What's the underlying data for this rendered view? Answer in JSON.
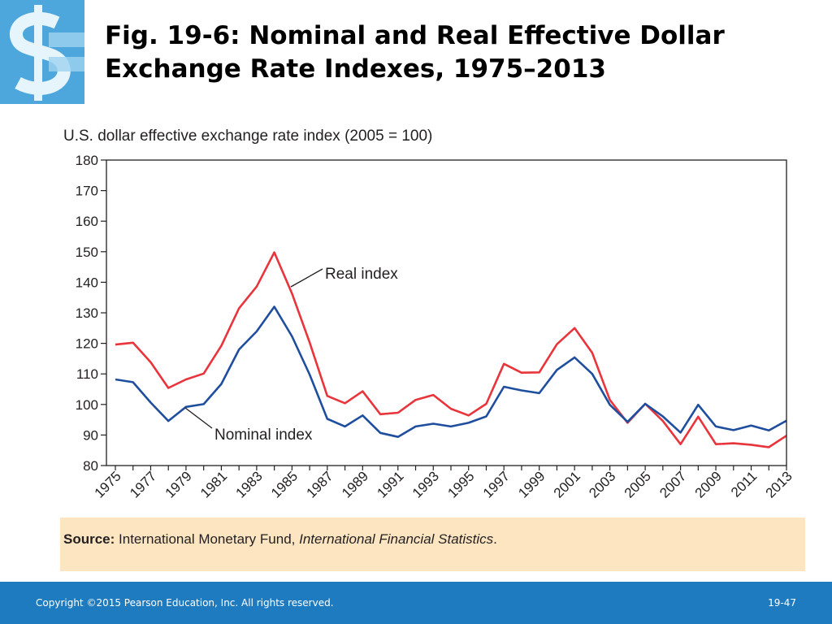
{
  "slide": {
    "title_line1": "Fig. 19-6: Nominal and Real Effective Dollar",
    "title_line2": "Exchange Rate Indexes, 1975–2013"
  },
  "logo": {
    "icon": "dollar-sign-logo-icon",
    "color": "#3a9bd5"
  },
  "chart_data": {
    "type": "line",
    "ylabel": "U.S. dollar effective exchange rate index (2005 = 100)",
    "xlabel": "",
    "ylim": [
      80,
      180
    ],
    "yticks": [
      80,
      90,
      100,
      110,
      120,
      130,
      140,
      150,
      160,
      170,
      180
    ],
    "xlim": [
      1975,
      2013
    ],
    "xtick_labels": [
      "1975",
      "1977",
      "1979",
      "1981",
      "1983",
      "1985",
      "1987",
      "1989",
      "1991",
      "1993",
      "1995",
      "1997",
      "1999",
      "2001",
      "2003",
      "2005",
      "2007",
      "2009",
      "2011",
      "2013"
    ],
    "grid": false,
    "x": [
      1975,
      1976,
      1977,
      1978,
      1979,
      1980,
      1981,
      1982,
      1983,
      1984,
      1985,
      1986,
      1987,
      1988,
      1989,
      1990,
      1991,
      1992,
      1993,
      1994,
      1995,
      1996,
      1997,
      1998,
      1999,
      2000,
      2001,
      2002,
      2003,
      2004,
      2005,
      2006,
      2007,
      2008,
      2009,
      2010,
      2011,
      2012,
      2013
    ],
    "series": [
      {
        "name": "Real index",
        "color": "#e8343b",
        "values": [
          119.6,
          120.2,
          113.8,
          105.4,
          108.2,
          110.1,
          119.2,
          131.5,
          138.6,
          149.8,
          136.3,
          120.3,
          102.8,
          100.4,
          104.3,
          96.8,
          97.3,
          101.5,
          103.1,
          98.6,
          96.4,
          100.2,
          113.3,
          110.4,
          110.5,
          119.7,
          125.0,
          116.9,
          101.5,
          94.0,
          100.2,
          94.6,
          87.0,
          96.0,
          87.0,
          87.3,
          86.8,
          86.0,
          89.8
        ]
      },
      {
        "name": "Nominal index",
        "color": "#1f4e9e",
        "values": [
          108.2,
          107.3,
          100.6,
          94.6,
          99.2,
          100.1,
          106.7,
          118.0,
          123.9,
          132.0,
          122.3,
          109.8,
          95.3,
          92.8,
          96.4,
          90.7,
          89.4,
          92.8,
          93.7,
          92.8,
          94.0,
          96.1,
          105.8,
          104.6,
          103.7,
          111.3,
          115.4,
          110.0,
          99.9,
          94.3,
          100.2,
          96.1,
          90.8,
          99.9,
          92.8,
          91.6,
          93.1,
          91.5,
          94.7
        ]
      }
    ],
    "annotations": [
      {
        "text": "Real index",
        "series": "Real index"
      },
      {
        "text": "Nominal index",
        "series": "Nominal index"
      }
    ]
  },
  "source": {
    "label": "Source:",
    "text_plain": "International Monetary Fund, ",
    "text_italic": "International Financial Statistics",
    "text_end": "."
  },
  "footer": {
    "copyright": "Copyright ©2015 Pearson Education, Inc. All rights reserved.",
    "slide_number": "19-47"
  }
}
